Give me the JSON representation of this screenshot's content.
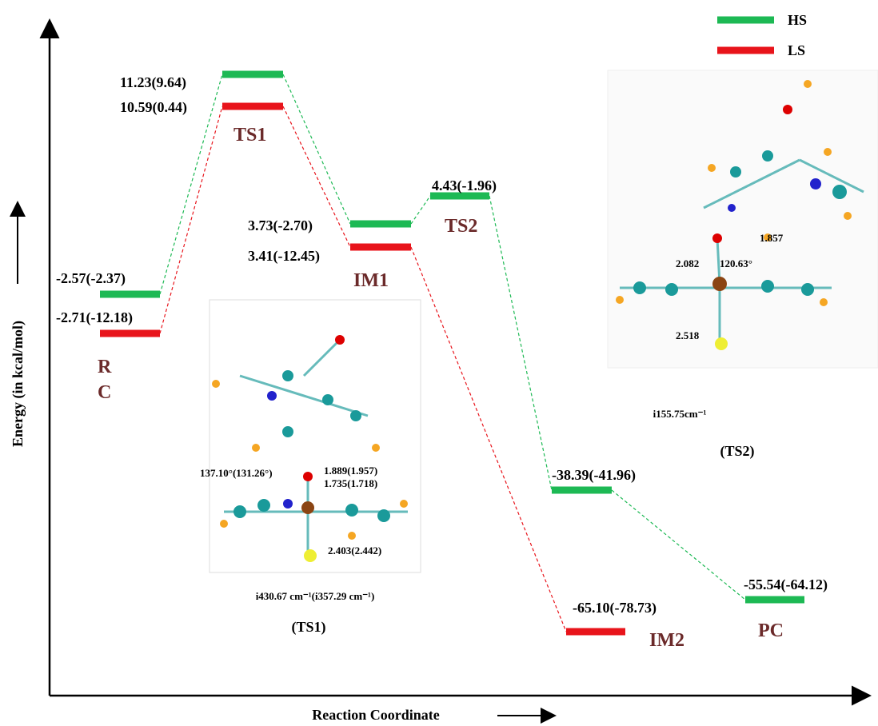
{
  "legend": [
    {
      "label": "HS"
    },
    {
      "label": "LS"
    }
  ],
  "axes": {
    "y_label": "Energy (in kcal/mol)",
    "x_label": "Reaction Coordinate"
  },
  "states": [
    {
      "name": "R C",
      "hs": "-2.57(-2.37)",
      "ls": "-2.71(-12.18)"
    },
    {
      "name": "TS1",
      "hs": "11.23(9.64)",
      "ls": "10.59(0.44)"
    },
    {
      "name": "IM1",
      "hs": "3.73(-2.70)",
      "ls": "3.41(-12.45)"
    },
    {
      "name": "TS2",
      "hs": "4.43(-1.96)"
    },
    {
      "name": "IM2",
      "hs": "-38.39(-41.96)",
      "ls": "-65.10(-78.73)"
    },
    {
      "name": "PC",
      "hs": "-55.54(-64.12)"
    }
  ],
  "insets": [
    {
      "angle": "137.10°(131.26°)",
      "d1": "1.889(1.957)",
      "d2": "1.735(1.718)",
      "d3": "2.403(2.442)",
      "freq": "i430.67 cm⁻¹(i357.29 cm⁻¹)",
      "caption": "(TS1)"
    },
    {
      "d1": "1.857",
      "d2": "2.082",
      "angle": "120.63°",
      "d3": "2.518",
      "freq": "i155.75cm⁻¹",
      "caption": "(TS2)"
    }
  ]
}
